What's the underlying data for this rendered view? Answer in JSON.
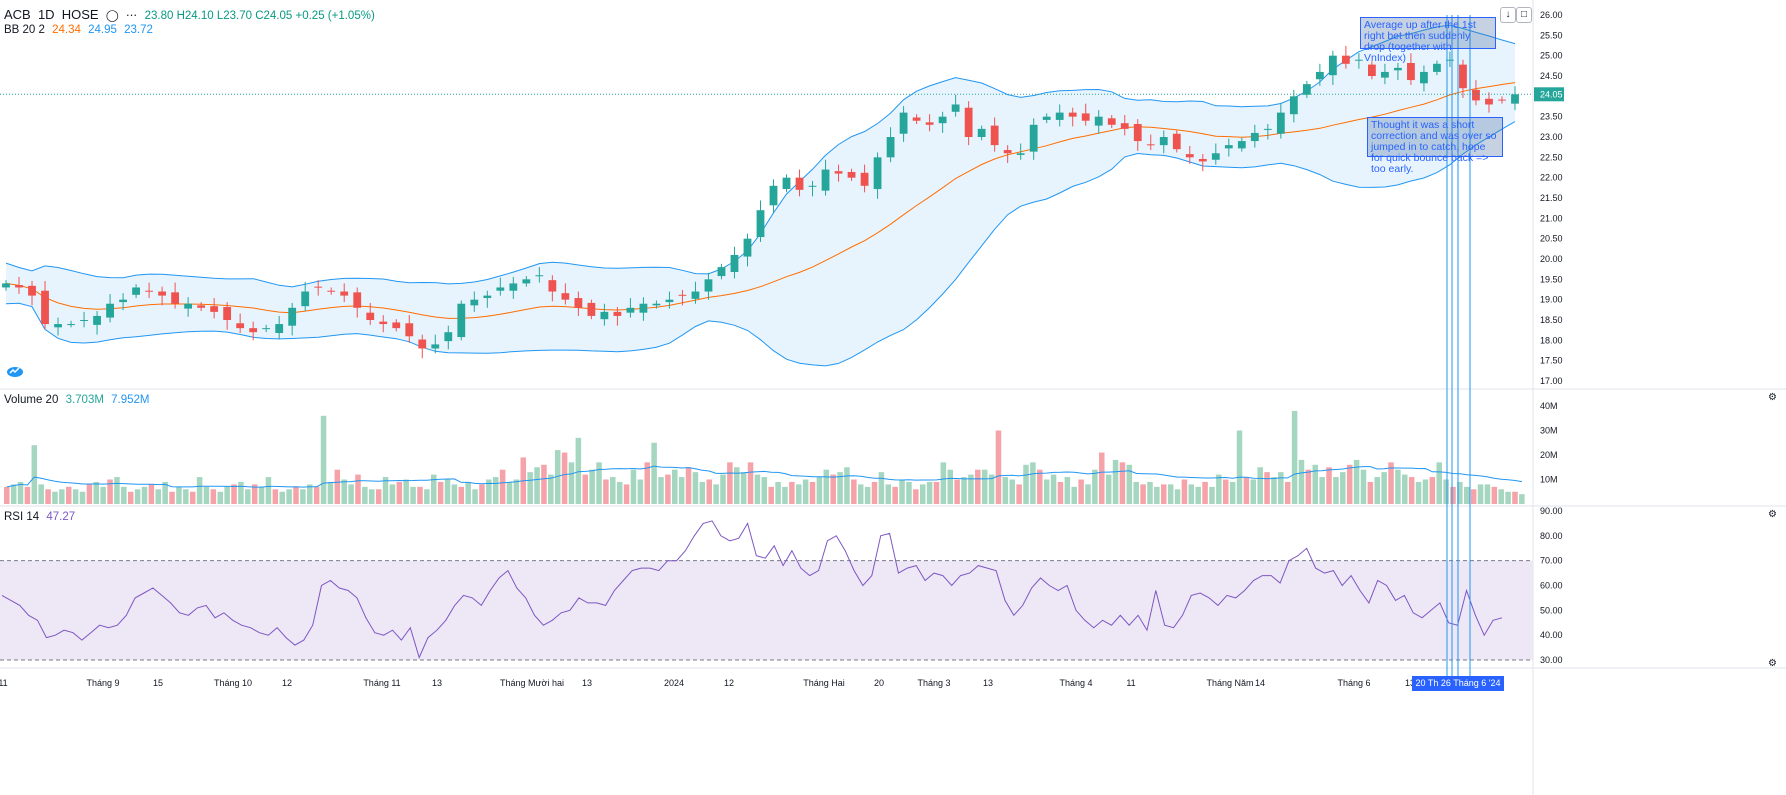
{
  "header": {
    "symbol": "ACB",
    "interval": "1D",
    "exchange": "HOSE",
    "ohlc_text": "23.80 H24.10 L23.70 C24.05 +0.25 (+1.05%)",
    "eye_icon": "eye-icon",
    "more_icon": "more-icon"
  },
  "indicators": {
    "bb": {
      "label": "BB 20 2",
      "basis": "24.34",
      "upper": "24.95",
      "lower": "23.72"
    },
    "volume": {
      "label": "Volume 20",
      "value": "3.703M",
      "ma": "7.952M"
    },
    "rsi": {
      "label": "RSI 14",
      "value": "47.27"
    }
  },
  "annotations": [
    {
      "text": "Average up after the 1st right bet then suddenly drop (together with VnIndex)"
    },
    {
      "text": "Thought it was a short correction and was over so jumped in to catch, hope for quick bounce back => too early."
    }
  ],
  "time_marker": "20 Th  26 Tháng 6 '24",
  "colors": {
    "up": "#26a69a",
    "down": "#ef5350",
    "up_vol": "#a5d6c0",
    "down_vol": "#f5a3a8",
    "bb_band": "#2196f3",
    "bb_basis": "#ff6d00",
    "bb_fill": "#e3f2fd",
    "rsi_line": "#7e57c2",
    "rsi_fill": "#ede7f6",
    "last_price": "#26a69a"
  },
  "chart_data": [
    {
      "type": "candlestick",
      "title": "ACB 1D HOSE",
      "x": [
        "11",
        "Tháng 9",
        "15",
        "Tháng 10",
        "12",
        "Tháng 11",
        "13",
        "Tháng Mười hai",
        "13",
        "2024",
        "12",
        "Tháng Hai",
        "20",
        "Tháng 3",
        "13",
        "Tháng 4",
        "11",
        "Tháng Năm",
        "14",
        "Tháng 6",
        "13"
      ],
      "close_path": [
        19.4,
        19.3,
        19.1,
        18.4,
        18.4,
        18.4,
        18.5,
        18.6,
        18.9,
        19.0,
        19.3,
        19.2,
        19.1,
        18.9,
        18.9,
        18.8,
        18.7,
        18.5,
        18.3,
        18.2,
        18.3,
        18.4,
        18.8,
        19.2,
        19.3,
        19.2,
        19.1,
        18.8,
        18.5,
        18.4,
        18.3,
        18.1,
        17.8,
        17.9,
        18.2,
        18.9,
        19.0,
        19.1,
        19.3,
        19.4,
        19.5,
        19.6,
        19.2,
        19.0,
        18.8,
        18.6,
        18.7,
        18.6,
        18.8,
        18.9,
        18.9,
        19.0,
        19.1,
        19.2,
        19.5,
        19.8,
        20.1,
        20.5,
        21.2,
        21.8,
        22.0,
        21.7,
        21.8,
        22.2,
        22.1,
        22.0,
        21.8,
        22.5,
        23.0,
        23.6,
        23.4,
        23.3,
        23.5,
        23.8,
        23.0,
        23.2,
        22.8,
        22.6,
        22.6,
        23.3,
        23.5,
        23.6,
        23.5,
        23.4,
        23.5,
        23.3,
        23.2,
        22.9,
        22.8,
        23.0,
        22.7,
        22.5,
        22.4,
        22.6,
        22.8,
        22.9,
        23.1,
        23.2,
        23.6,
        24.0,
        24.3,
        24.6,
        25.0,
        24.8,
        24.9,
        24.5,
        24.6,
        24.7,
        24.4,
        24.6,
        24.8,
        24.9,
        24.2,
        23.9,
        23.8,
        23.9,
        24.05
      ],
      "ylim": [
        17.0,
        26.0
      ],
      "yticks": [
        17.0,
        17.5,
        18.0,
        18.5,
        19.0,
        19.5,
        20.0,
        20.5,
        21.0,
        21.5,
        22.0,
        22.5,
        23.0,
        23.5,
        24.0,
        24.5,
        25.0,
        25.5,
        26.0
      ],
      "last_price": 24.05,
      "overlays": [
        "Bollinger Bands (20, 2)"
      ]
    },
    {
      "type": "bar",
      "title": "Volume 20",
      "ylim": [
        0,
        40
      ],
      "yticks_labels": [
        "10M",
        "20M",
        "30M",
        "40M"
      ],
      "yticks": [
        10,
        20,
        30,
        40
      ],
      "values_millions": [
        7,
        8,
        9,
        7,
        24,
        8,
        6,
        5,
        6,
        7,
        6,
        5,
        8,
        9,
        7,
        10,
        11,
        7,
        5,
        6,
        7,
        8,
        6,
        9,
        5,
        7,
        6,
        5,
        11,
        7,
        6,
        5,
        7,
        8,
        9,
        6,
        8,
        7,
        11,
        6,
        5,
        6,
        7,
        6,
        8,
        7,
        36,
        9,
        14,
        10,
        8,
        12,
        7,
        6,
        6,
        11,
        8,
        9,
        10,
        7,
        7,
        6,
        12,
        9,
        10,
        8,
        7,
        9,
        6,
        8,
        10,
        11,
        14,
        9,
        10,
        19,
        13,
        15,
        16,
        12,
        22,
        21,
        17,
        27,
        12,
        14,
        17,
        10,
        11,
        9,
        8,
        14,
        10,
        17,
        25,
        11,
        12,
        14,
        11,
        15,
        13,
        9,
        10,
        8,
        12,
        17,
        15,
        13,
        17,
        12,
        11,
        7,
        9,
        7,
        9,
        8,
        10,
        9,
        11,
        14,
        12,
        13,
        15,
        10,
        8,
        7,
        9,
        13,
        8,
        7,
        10,
        9,
        6,
        8,
        9,
        9,
        17,
        14,
        10,
        11,
        12,
        14,
        14,
        12,
        30,
        11,
        10,
        8,
        16,
        17,
        14,
        10,
        12,
        9,
        11,
        7,
        10,
        8,
        14,
        21,
        12,
        18,
        17,
        16,
        9,
        8,
        9,
        7,
        8,
        8,
        6,
        10,
        8,
        7,
        9,
        7,
        12,
        10,
        9,
        30,
        11,
        10,
        15,
        13,
        11,
        13,
        9,
        38,
        18,
        14,
        16,
        11,
        15,
        11,
        13,
        16,
        18,
        14,
        9,
        11,
        13,
        17,
        14,
        12,
        11,
        9,
        10,
        11,
        17,
        10,
        7,
        9,
        7,
        6,
        8,
        8,
        7,
        6,
        5,
        5,
        4
      ],
      "ma_label": "7.952M"
    },
    {
      "type": "line",
      "title": "RSI 14",
      "ylim": [
        30,
        90
      ],
      "yticks": [
        30,
        40,
        50,
        60,
        70,
        80,
        90
      ],
      "levels": [
        30,
        70
      ],
      "values": [
        56,
        54,
        52,
        48,
        46,
        39,
        40,
        42,
        41,
        38,
        41,
        44,
        43,
        44,
        48,
        55,
        57,
        59,
        56,
        53,
        49,
        48,
        51,
        52,
        47,
        49,
        46,
        44,
        43,
        41,
        40,
        43,
        39,
        36,
        38,
        44,
        60,
        62,
        59,
        58,
        55,
        47,
        41,
        40,
        42,
        38,
        43,
        31,
        39,
        42,
        46,
        52,
        56,
        55,
        52,
        58,
        63,
        66,
        59,
        55,
        48,
        44,
        46,
        49,
        50,
        55,
        53,
        53,
        52,
        58,
        62,
        66,
        67,
        67,
        66,
        70,
        70,
        74,
        80,
        85,
        86,
        80,
        78,
        79,
        85,
        72,
        71,
        76,
        68,
        74,
        67,
        64,
        66,
        78,
        80,
        74,
        66,
        60,
        64,
        80,
        81,
        65,
        67,
        68,
        62,
        65,
        64,
        60,
        64,
        65,
        68,
        67,
        66,
        54,
        48,
        52,
        59,
        63,
        60,
        58,
        60,
        50,
        46,
        43,
        46,
        44,
        48,
        44,
        48,
        42,
        58,
        44,
        43,
        48,
        56,
        57,
        55,
        52,
        56,
        55,
        58,
        62,
        64,
        64,
        61,
        70,
        72,
        75,
        67,
        65,
        66,
        60,
        64,
        58,
        53,
        62,
        60,
        54,
        56,
        49,
        47,
        50,
        53,
        45,
        44,
        58,
        48,
        40,
        46,
        47
      ],
      "last_value": 47.27
    }
  ],
  "axes": {
    "price_labels": [
      "26.00",
      "25.50",
      "25.00",
      "24.50",
      "24.00",
      "23.50",
      "23.00",
      "22.50",
      "22.00",
      "21.50",
      "21.00",
      "20.50",
      "20.00",
      "19.50",
      "19.00",
      "18.50",
      "18.00",
      "17.50",
      "17.00"
    ],
    "last_price_label": "24.05",
    "volume_labels": [
      "40M",
      "30M",
      "20M",
      "10M"
    ],
    "rsi_labels": [
      "90.00",
      "80.00",
      "70.00",
      "60.00",
      "50.00",
      "40.00",
      "30.00"
    ],
    "time_labels": [
      "11",
      "Tháng 9",
      "15",
      "Tháng 10",
      "12",
      "Tháng 11",
      "13",
      "Tháng Mười hai",
      "13",
      "2024",
      "12",
      "Tháng Hai",
      "20",
      "Tháng 3",
      "13",
      "Tháng 4",
      "11",
      "Tháng Năm",
      "14",
      "Tháng 6",
      "13"
    ]
  }
}
